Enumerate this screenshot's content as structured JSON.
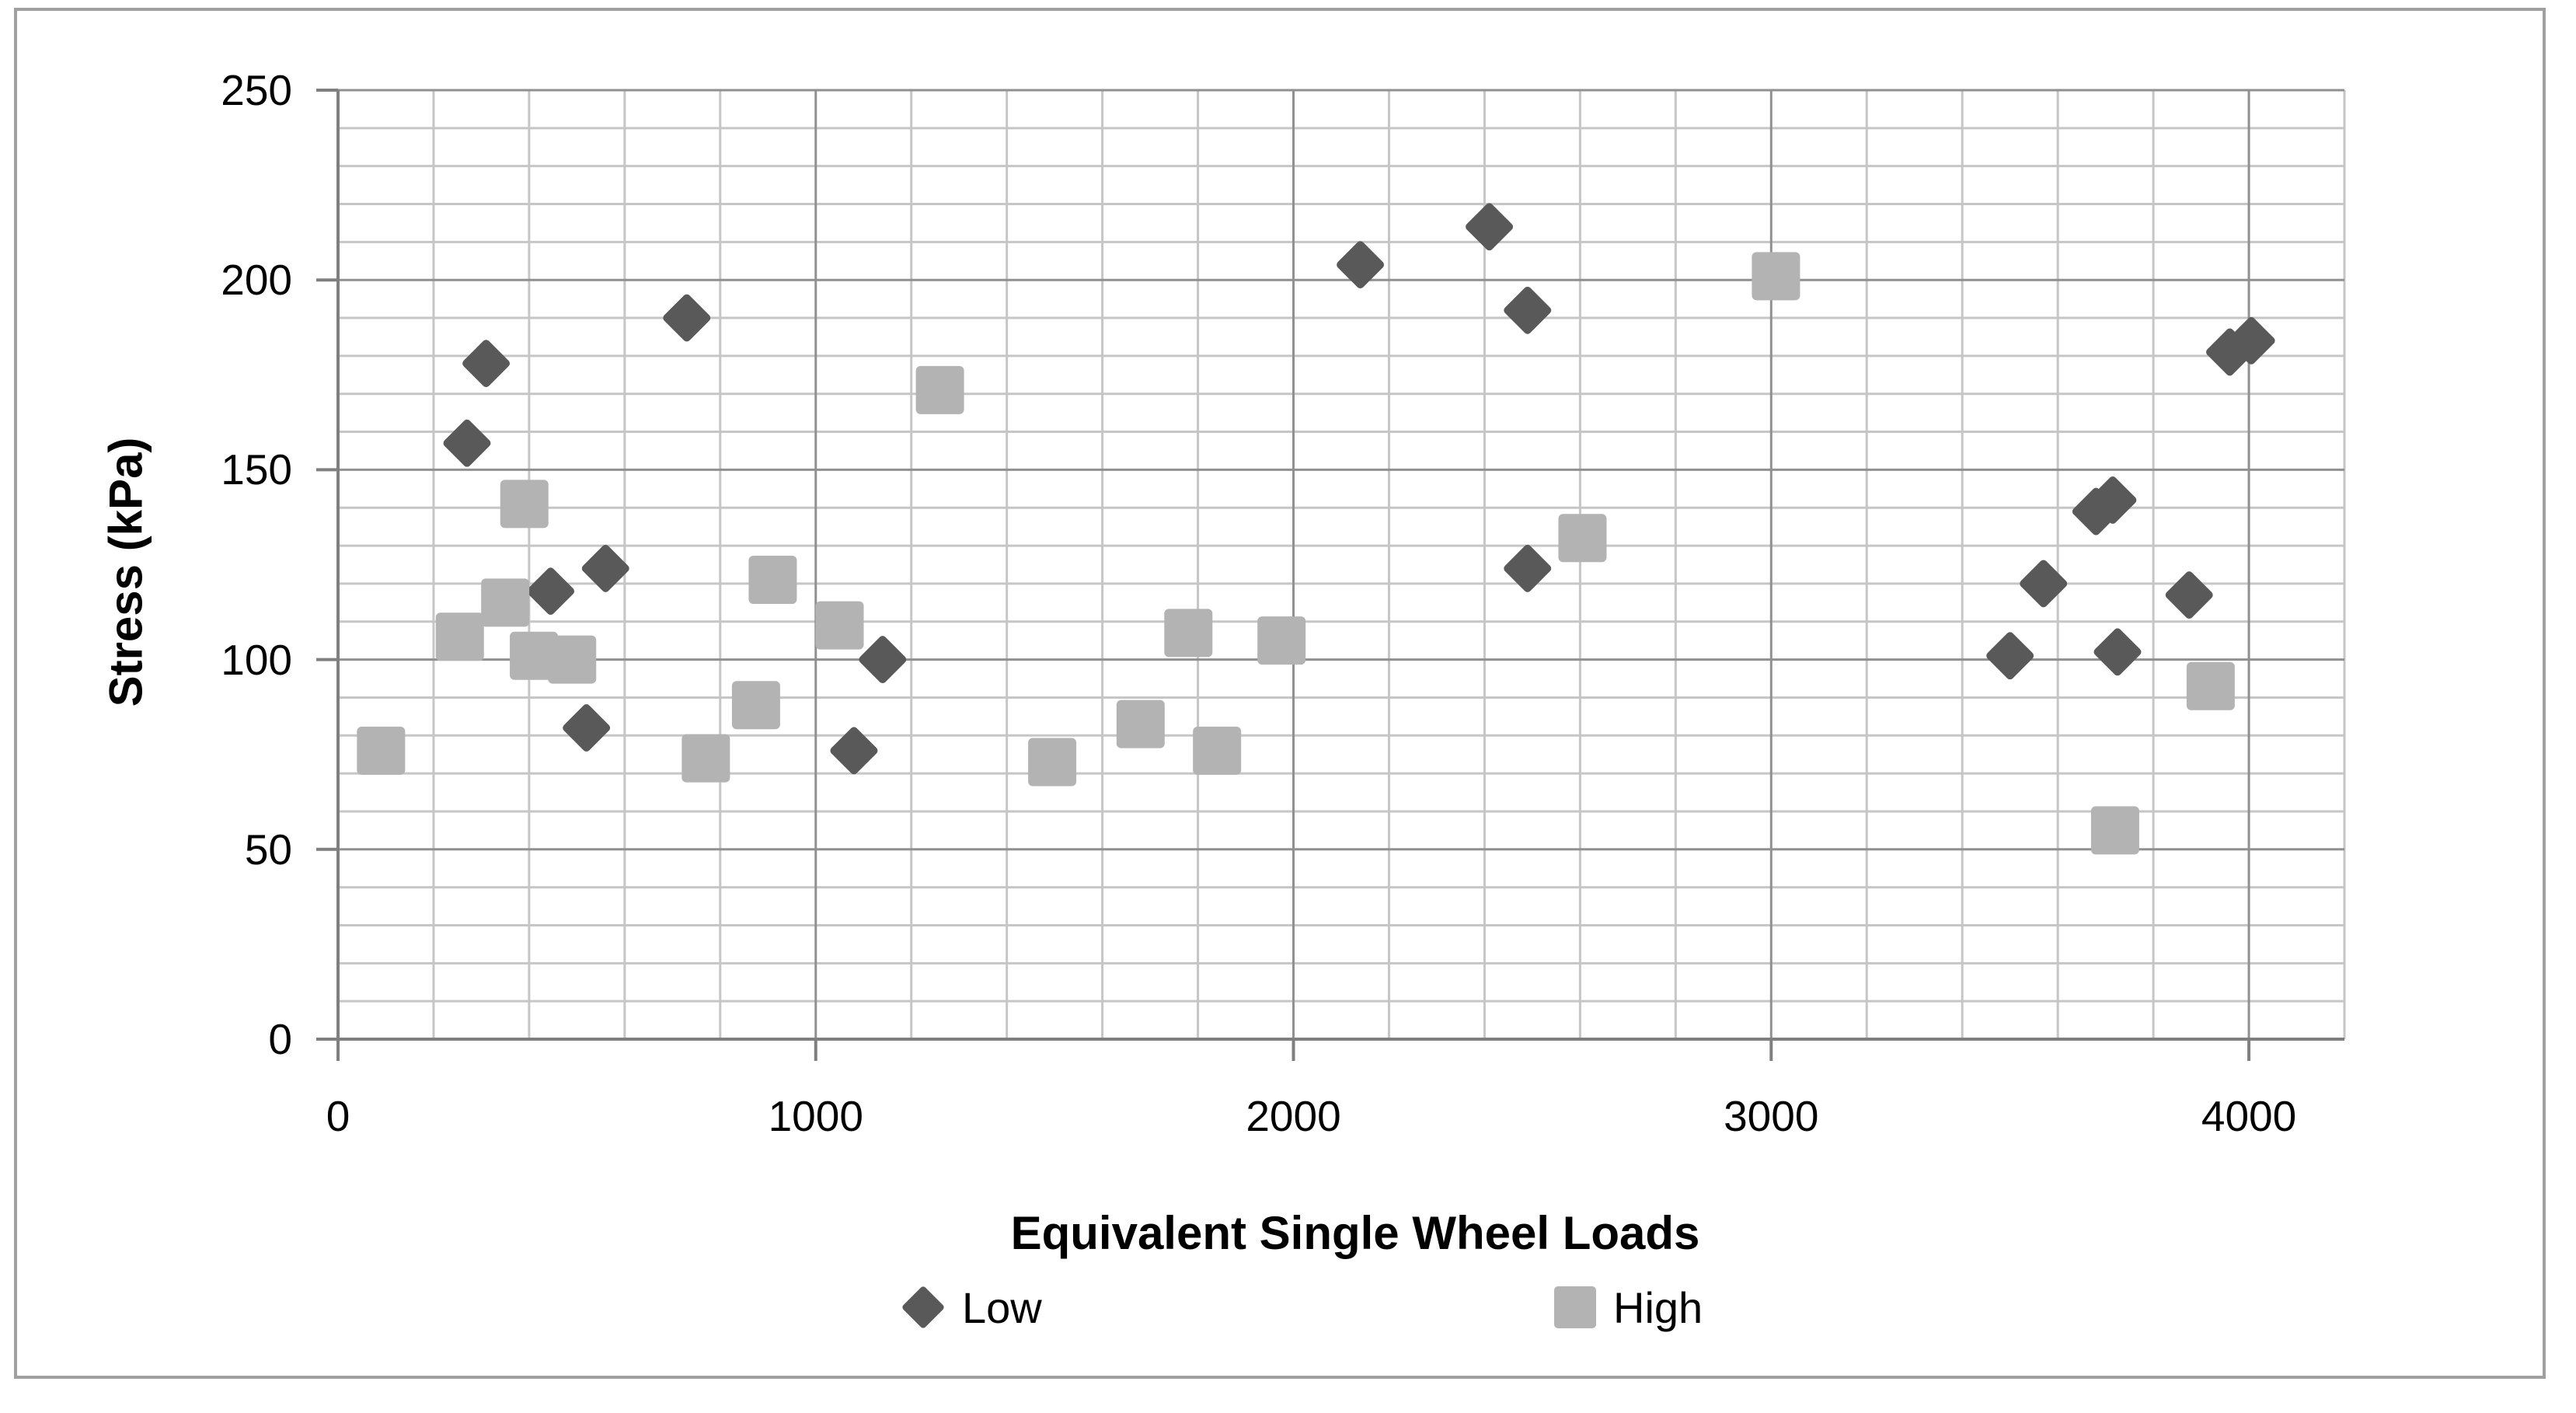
{
  "chart_data": {
    "type": "scatter",
    "title": "",
    "xlabel": "Equivalent Single Wheel Loads",
    "ylabel": "Stress (kPa)",
    "xlim": [
      0,
      4200
    ],
    "ylim": [
      0,
      250
    ],
    "x_major_ticks": [
      0,
      1000,
      2000,
      3000,
      4000
    ],
    "y_major_ticks": [
      0,
      50,
      100,
      150,
      200,
      250
    ],
    "x_minor_step": 200,
    "y_minor_step": 10,
    "grid": true,
    "legend_position": "bottom",
    "series": [
      {
        "name": "Low",
        "marker": "diamond",
        "color": "#595959",
        "points": [
          [
            270,
            157
          ],
          [
            310,
            178
          ],
          [
            445,
            118
          ],
          [
            520,
            82
          ],
          [
            560,
            124
          ],
          [
            730,
            190
          ],
          [
            1080,
            76
          ],
          [
            1140,
            100
          ],
          [
            2140,
            204
          ],
          [
            2410,
            214
          ],
          [
            2490,
            192
          ],
          [
            2490,
            124
          ],
          [
            3500,
            101
          ],
          [
            3570,
            120
          ],
          [
            3680,
            139
          ],
          [
            3715,
            142
          ],
          [
            3725,
            102
          ],
          [
            3875,
            117
          ],
          [
            3960,
            181
          ],
          [
            4005,
            184
          ]
        ]
      },
      {
        "name": "High",
        "marker": "square",
        "color": "#b3b3b3",
        "points": [
          [
            90,
            76
          ],
          [
            255,
            106
          ],
          [
            350,
            115
          ],
          [
            390,
            141
          ],
          [
            410,
            101
          ],
          [
            490,
            100
          ],
          [
            770,
            74
          ],
          [
            875,
            88
          ],
          [
            910,
            121
          ],
          [
            1050,
            109
          ],
          [
            1260,
            171
          ],
          [
            1495,
            73
          ],
          [
            1680,
            83
          ],
          [
            1780,
            107
          ],
          [
            1840,
            76
          ],
          [
            1975,
            105
          ],
          [
            2605,
            132
          ],
          [
            3010,
            201
          ],
          [
            3720,
            55
          ],
          [
            3920,
            93
          ]
        ]
      }
    ]
  },
  "colors": {
    "series_low": "#595959",
    "series_high": "#b3b3b3",
    "gridline_minor": "#c6c6c6",
    "gridline_major": "#909090",
    "axis_line": "#7f7f7f",
    "frame_border": "#a0a0a0",
    "text": "#000000",
    "background": "#ffffff"
  }
}
